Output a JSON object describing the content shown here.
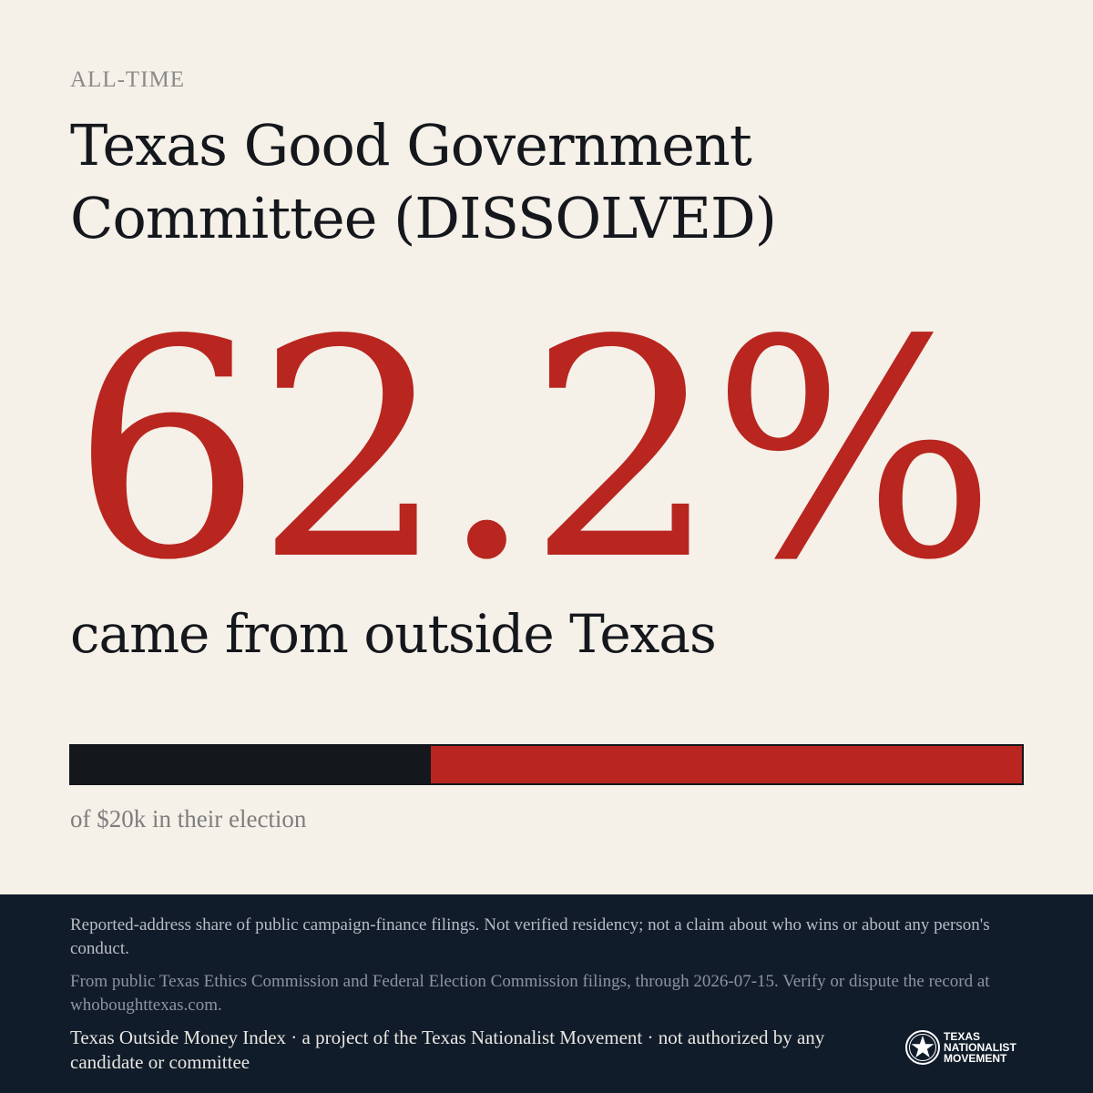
{
  "header": {
    "eyebrow": "ALL-TIME",
    "title": "Texas Good Government Committee (DISSOLVED)"
  },
  "stat": {
    "value": "62.2%",
    "description": "came from outside Texas",
    "outside_share_percent": 62.2
  },
  "bar": {
    "caption": "of $20k in their election",
    "colors": {
      "inside": "#14171c",
      "outside": "#b8261f"
    }
  },
  "footer": {
    "disclaimer": "Reported-address share of public campaign-finance filings. Not verified residency; not a claim about who wins or about any person's conduct.",
    "source": "From public Texas Ethics Commission and Federal Election Commission filings, through 2026-07-15. Verify or dispute the record at whoboughttexas.com.",
    "project": "Texas Outside Money Index · a project of the Texas Nationalist Movement · not authorized by any candidate or committee",
    "logo": {
      "icon": "star-seal-icon",
      "line1": "TEXAS",
      "line2": "NATIONALIST",
      "line3": "MOVEMENT"
    }
  },
  "colors": {
    "background": "#f5f0e8",
    "accent_red": "#b8261f",
    "ink": "#14171c",
    "footer_bg": "#111c2a"
  }
}
